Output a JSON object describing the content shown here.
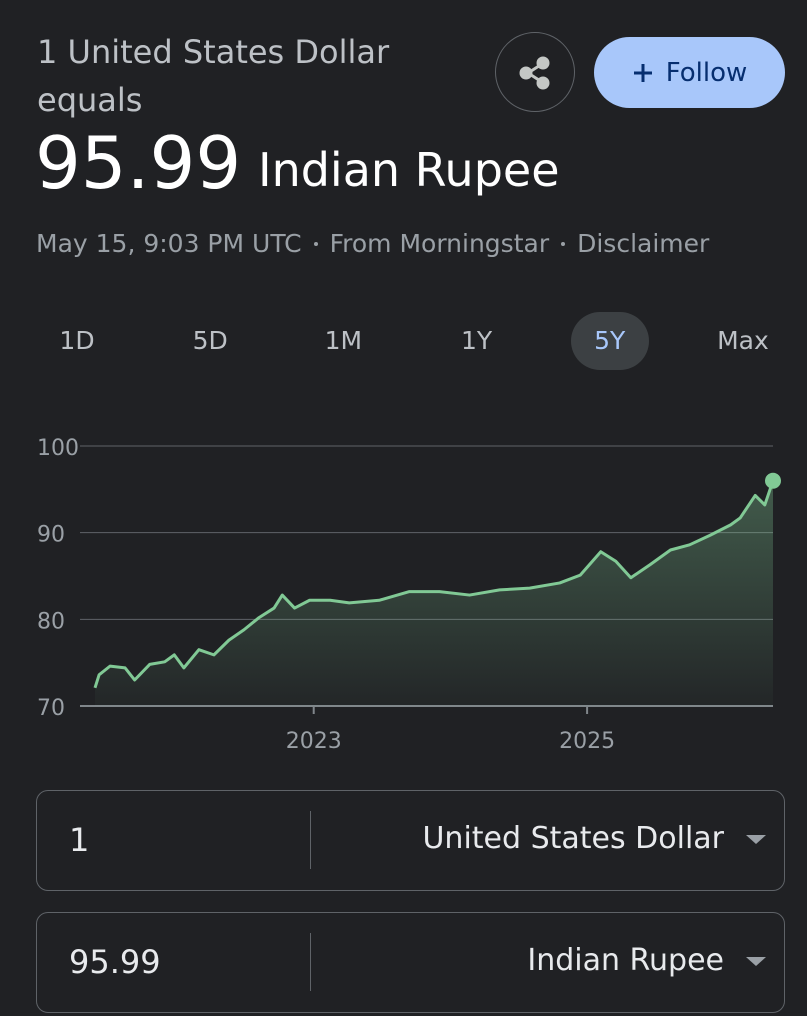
{
  "header": {
    "title": "1 United States Dollar equals",
    "rate": "95.99",
    "currency": "Indian Rupee",
    "timestamp": "May 15, 9:03 PM UTC",
    "source": "From Morningstar",
    "disclaimer": "Disclaimer",
    "follow": "Follow"
  },
  "tabs": {
    "items": [
      "1D",
      "5D",
      "1M",
      "1Y",
      "5Y",
      "Max"
    ],
    "selected": 4
  },
  "chart_data": {
    "type": "line",
    "color": "#81c995",
    "x": [
      2021.4,
      2021.43,
      2021.51,
      2021.62,
      2021.69,
      2021.8,
      2021.91,
      2021.98,
      2022.05,
      2022.16,
      2022.27,
      2022.38,
      2022.49,
      2022.6,
      2022.71,
      2022.77,
      2022.86,
      2022.97,
      2023.12,
      2023.26,
      2023.48,
      2023.7,
      2023.92,
      2024.14,
      2024.36,
      2024.58,
      2024.8,
      2024.95,
      2025.1,
      2025.21,
      2025.32,
      2025.46,
      2025.61,
      2025.75,
      2025.9,
      2026.05,
      2026.12,
      2026.23,
      2026.3,
      2026.36
    ],
    "series": [
      {
        "values": [
          72.1,
          73.6,
          74.6,
          74.4,
          73.0,
          74.8,
          75.1,
          75.9,
          74.4,
          76.5,
          75.9,
          77.6,
          78.8,
          80.2,
          81.3,
          82.8,
          81.3,
          82.2,
          82.2,
          81.9,
          82.2,
          83.2,
          83.2,
          82.8,
          83.4,
          83.6,
          84.2,
          85.1,
          87.8,
          86.7,
          84.8,
          86.3,
          88.0,
          88.6,
          89.7,
          90.9,
          91.7,
          94.3,
          93.2,
          95.99
        ]
      }
    ],
    "xlim": [
      2021.4,
      2026.36
    ],
    "xticks": [
      2023,
      2025
    ],
    "ylim": [
      70,
      100
    ],
    "yticks": [
      70,
      80,
      90,
      100
    ],
    "grid": true
  },
  "converter": {
    "rows": [
      {
        "amount": "1",
        "currency": "United States Dollar"
      },
      {
        "amount": "95.99",
        "currency": "Indian Rupee"
      }
    ]
  }
}
